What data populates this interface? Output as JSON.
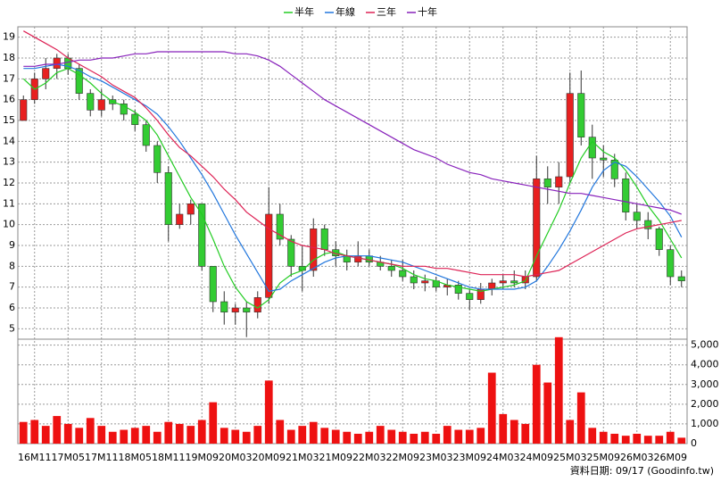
{
  "chart_data": {
    "type": "candlestick",
    "categories": [
      null,
      "16M11",
      null,
      null,
      "17M05",
      null,
      null,
      "17M11",
      null,
      null,
      "18M05",
      null,
      null,
      "18M11",
      null,
      null,
      "19M09",
      null,
      null,
      "20M03",
      null,
      null,
      "20M09",
      null,
      null,
      "21M03",
      null,
      null,
      "21M09",
      null,
      null,
      "22M03",
      null,
      null,
      "22M09",
      null,
      null,
      "23M03",
      null,
      null,
      "23M09",
      null,
      null,
      "24M03",
      null,
      null,
      "24M09",
      null,
      null,
      "25M03",
      null,
      null,
      "25M09",
      null,
      null,
      "26M03",
      null,
      null,
      "26M09",
      null
    ],
    "open": [
      15,
      16,
      17,
      17.5,
      18,
      17.5,
      16.3,
      15.5,
      16,
      15.8,
      15.3,
      14.8,
      13.8,
      12.5,
      10,
      10.5,
      11,
      8,
      6.3,
      5.8,
      6,
      5.8,
      6.5,
      10.5,
      9.3,
      8,
      7.8,
      9.8,
      8.8,
      8.5,
      8.2,
      8.5,
      8.2,
      8,
      7.8,
      7.5,
      7.2,
      7.3,
      7,
      7.1,
      6.7,
      6.4,
      6.9,
      7.2,
      7.3,
      7.2,
      7.5,
      12.2,
      11.8,
      12.3,
      16.3,
      14.2,
      13.2,
      13.1,
      12.2,
      10.6,
      10.2,
      9.8,
      8.8,
      7.5
    ],
    "high": [
      16.2,
      17.3,
      18,
      18.2,
      18.2,
      17.7,
      16.5,
      16.5,
      16.2,
      16,
      15.5,
      15,
      14,
      12.8,
      11,
      11.2,
      11,
      8,
      6.8,
      6.2,
      6.3,
      6.8,
      11.8,
      11,
      9.5,
      9,
      10.3,
      10,
      9.2,
      8.8,
      9.2,
      8.8,
      8.5,
      8.3,
      8.3,
      7.8,
      7.6,
      7.5,
      7.4,
      7.3,
      6.9,
      7.2,
      7.4,
      7.6,
      7.8,
      7.8,
      13.3,
      12.8,
      13,
      17.3,
      17.4,
      14.8,
      13.8,
      13.4,
      12.5,
      11,
      10.6,
      9.9,
      9,
      7.8
    ],
    "low": [
      15,
      15.8,
      16.5,
      17,
      17.2,
      16,
      15.2,
      15.2,
      15.5,
      15,
      14.5,
      13.5,
      12,
      9.2,
      9.8,
      10,
      7.8,
      5.8,
      5.2,
      5.2,
      4.6,
      5.5,
      6.2,
      9,
      7.5,
      6.8,
      7.5,
      8.5,
      8,
      7.8,
      8,
      8,
      7.8,
      7.5,
      7.3,
      6.9,
      6.8,
      6.8,
      6.6,
      6.4,
      5.9,
      6.2,
      6.6,
      6.9,
      7,
      6.9,
      7.3,
      11,
      11,
      12,
      13.8,
      12.2,
      12.3,
      11.8,
      10.2,
      9.8,
      9.3,
      8.5,
      7.1,
      7
    ],
    "close": [
      16,
      17,
      17.5,
      18,
      17.5,
      16.3,
      15.5,
      16,
      15.8,
      15.3,
      14.8,
      13.8,
      12.5,
      10,
      10.5,
      11,
      8,
      6.3,
      5.8,
      6,
      5.8,
      6.5,
      10.5,
      9.3,
      8,
      7.8,
      9.8,
      8.8,
      8.5,
      8.2,
      8.5,
      8.2,
      8,
      7.8,
      7.5,
      7.2,
      7.3,
      7,
      7.1,
      6.7,
      6.4,
      6.9,
      7.2,
      7.3,
      7.2,
      7.5,
      12.2,
      11.8,
      12.3,
      16.3,
      14.2,
      13.2,
      13.1,
      12.2,
      10.6,
      10.2,
      9.8,
      8.8,
      7.5,
      7.3
    ],
    "up_color": "#e82020",
    "down_color": "#33cc33",
    "lines": [
      {
        "name": "半年",
        "color": "#22cc22",
        "values": [
          17,
          16.5,
          16.8,
          17.3,
          17.5,
          17.2,
          16.8,
          16.3,
          15.9,
          15.7,
          15.4,
          15,
          14.3,
          13.3,
          12.3,
          11.3,
          10.5,
          9.3,
          8,
          7,
          6.3,
          6,
          6.4,
          7.2,
          7.6,
          7.8,
          8.3,
          8.6,
          8.7,
          8.5,
          8.4,
          8.3,
          8.2,
          8.1,
          7.9,
          7.6,
          7.4,
          7.3,
          7.1,
          7,
          6.9,
          6.8,
          6.9,
          7,
          7.1,
          7.3,
          8.5,
          9.6,
          10.7,
          12,
          13.2,
          14,
          13.5,
          13.2,
          12.6,
          11.8,
          10.9,
          10.2,
          9.3,
          8.4
        ]
      },
      {
        "name": "年線",
        "color": "#2277dd",
        "values": [
          17.5,
          17.5,
          17.6,
          17.7,
          17.6,
          17.4,
          17.1,
          16.9,
          16.6,
          16.3,
          16,
          15.7,
          15.3,
          14.7,
          14,
          13.2,
          12.4,
          11.5,
          10.5,
          9.5,
          8.6,
          7.7,
          6.8,
          6.9,
          7.3,
          7.6,
          7.9,
          8.2,
          8.4,
          8.5,
          8.5,
          8.5,
          8.4,
          8.3,
          8.2,
          8,
          7.8,
          7.6,
          7.4,
          7.2,
          7,
          6.9,
          6.9,
          6.9,
          6.9,
          7,
          7.3,
          8,
          8.8,
          9.7,
          10.7,
          11.8,
          12.6,
          13,
          12.8,
          12.3,
          11.7,
          11.1,
          10.4,
          9.4
        ]
      },
      {
        "name": "三年",
        "color": "#dd2255",
        "values": [
          19.3,
          19,
          18.7,
          18.4,
          18,
          17.7,
          17.4,
          17.1,
          16.7,
          16.4,
          16.1,
          15.6,
          15,
          14.3,
          13.7,
          13.3,
          12.8,
          12.3,
          11.7,
          11.2,
          10.6,
          10.2,
          9.8,
          9.5,
          9.2,
          9,
          8.9,
          8.8,
          8.6,
          8.5,
          8.4,
          8.3,
          8.2,
          8.1,
          8,
          8,
          8,
          7.9,
          7.9,
          7.8,
          7.7,
          7.6,
          7.6,
          7.6,
          7.6,
          7.5,
          7.6,
          7.7,
          7.8,
          8.1,
          8.4,
          8.7,
          9,
          9.3,
          9.6,
          9.8,
          9.9,
          10,
          10.1,
          10.2
        ]
      },
      {
        "name": "十年",
        "color": "#8822bb",
        "values": [
          17.6,
          17.6,
          17.7,
          17.7,
          17.8,
          17.9,
          17.9,
          18,
          18,
          18.1,
          18.2,
          18.2,
          18.3,
          18.3,
          18.3,
          18.3,
          18.3,
          18.3,
          18.3,
          18.2,
          18.2,
          18.1,
          17.9,
          17.6,
          17.2,
          16.8,
          16.4,
          16,
          15.7,
          15.4,
          15.1,
          14.8,
          14.5,
          14.2,
          13.9,
          13.6,
          13.4,
          13.2,
          12.9,
          12.7,
          12.5,
          12.4,
          12.2,
          12.1,
          12,
          11.9,
          11.8,
          11.7,
          11.6,
          11.5,
          11.5,
          11.4,
          11.3,
          11.2,
          11.1,
          11,
          10.9,
          10.8,
          10.7,
          10.5
        ]
      }
    ],
    "ylim": [
      4.5,
      19.5
    ],
    "yticks": [
      5,
      6,
      7,
      8,
      9,
      10,
      11,
      12,
      13,
      14,
      15,
      16,
      17,
      18,
      19
    ],
    "volume": {
      "color": "#ee1111",
      "values": [
        1100,
        1200,
        900,
        1400,
        1000,
        800,
        1300,
        900,
        600,
        700,
        800,
        900,
        600,
        1100,
        1000,
        900,
        1200,
        2100,
        800,
        700,
        600,
        900,
        3200,
        1200,
        700,
        900,
        1100,
        800,
        700,
        600,
        500,
        600,
        900,
        700,
        600,
        500,
        600,
        500,
        900,
        700,
        700,
        800,
        3600,
        1500,
        1200,
        1000,
        4000,
        3100,
        5400,
        1200,
        2600,
        800,
        600,
        500,
        400,
        500,
        400,
        400,
        600,
        300
      ],
      "ylim": [
        0,
        5300
      ],
      "yticks": [
        0,
        {
          "value": 1000,
          "label": "1,000"
        },
        {
          "value": 2000,
          "label": "2,000"
        },
        {
          "value": 3000,
          "label": "3,000"
        },
        {
          "value": 4000,
          "label": "4,000"
        },
        {
          "value": 5000,
          "label": "5,000"
        }
      ]
    },
    "grid": true,
    "footnote": "資料日期: 09/17 (Goodinfo.tw)"
  }
}
